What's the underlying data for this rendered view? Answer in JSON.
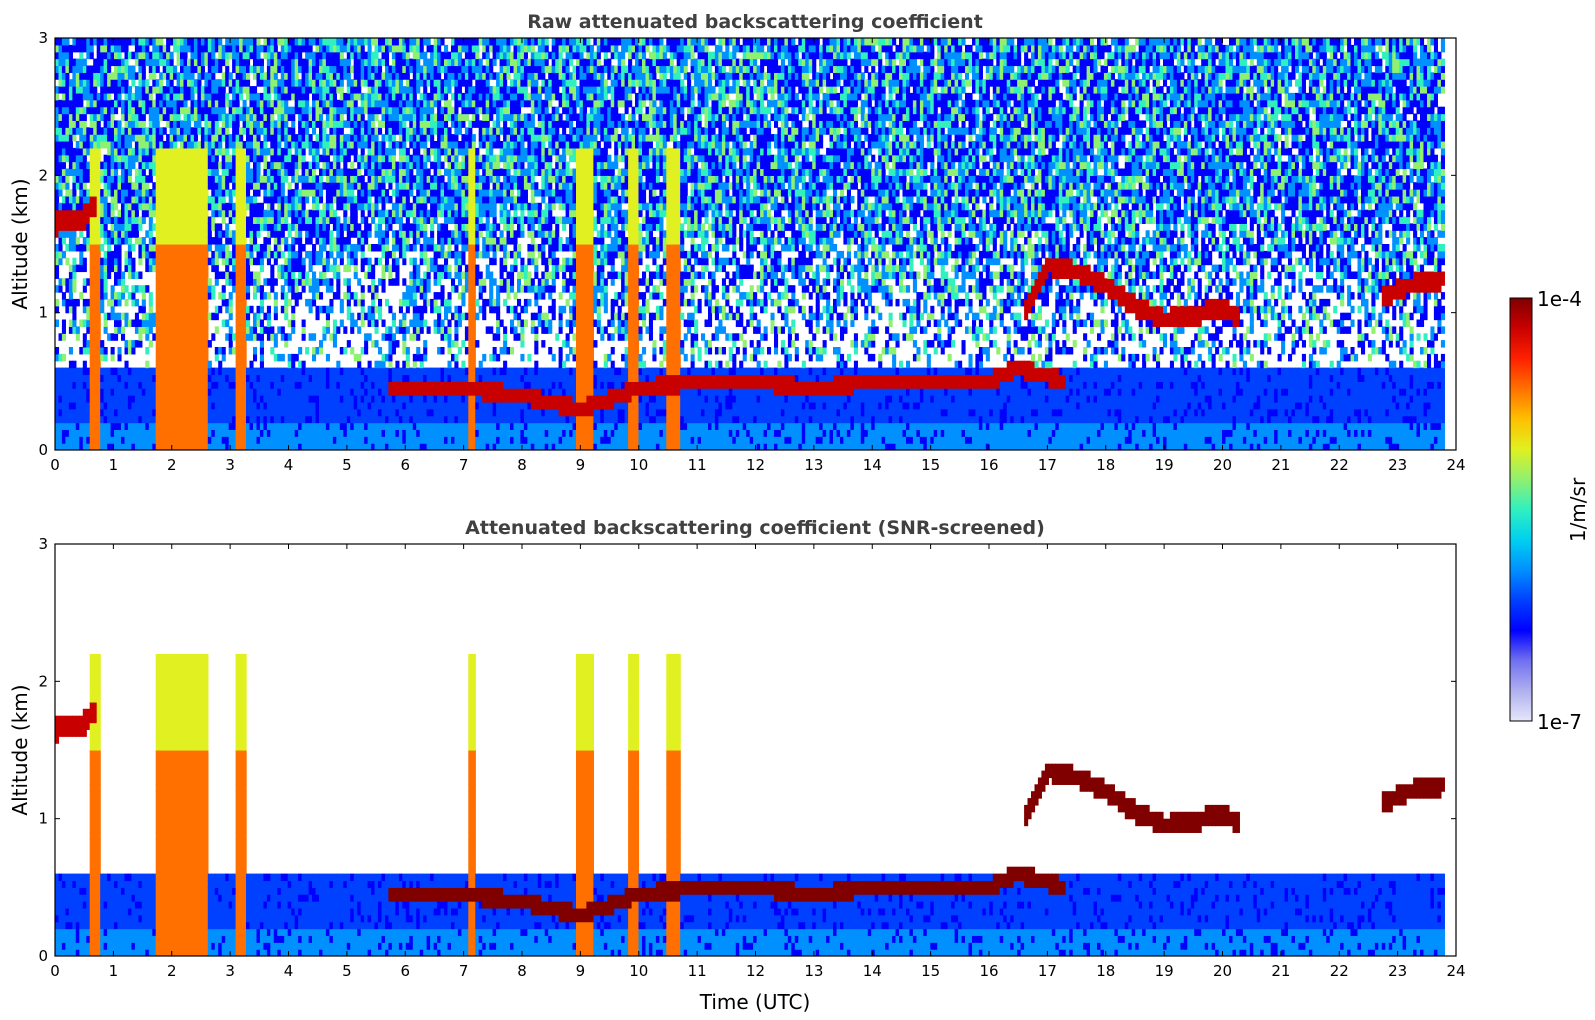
{
  "chart_data": [
    {
      "type": "heatmap",
      "title": "Raw attenuated backscattering coefficient",
      "xlabel": "",
      "ylabel": "Altitude (km)",
      "xlim": [
        0,
        24
      ],
      "ylim": [
        0,
        3
      ],
      "x_ticks": [
        0,
        1,
        2,
        3,
        4,
        5,
        6,
        7,
        8,
        9,
        10,
        11,
        12,
        13,
        14,
        15,
        16,
        17,
        18,
        19,
        20,
        21,
        22,
        23,
        24
      ],
      "y_ticks": [
        0,
        1,
        2,
        3
      ],
      "data_end_time": 23.8,
      "screened": false,
      "features": {
        "boundary_layer_top_km": 0.6,
        "elevated_layer": [
          [
            5.7,
            0.45
          ],
          [
            6.5,
            0.45
          ],
          [
            7.0,
            0.45
          ],
          [
            8.0,
            0.4
          ],
          [
            9.0,
            0.3
          ],
          [
            10.0,
            0.45
          ],
          [
            11.0,
            0.5
          ],
          [
            12.0,
            0.5
          ],
          [
            13.0,
            0.45
          ],
          [
            14.0,
            0.5
          ],
          [
            15.0,
            0.5
          ],
          [
            16.0,
            0.5
          ],
          [
            16.5,
            0.6
          ],
          [
            17.3,
            0.5
          ]
        ],
        "cloud_layer": [
          [
            16.6,
            1.0
          ],
          [
            17.0,
            1.35
          ],
          [
            17.5,
            1.3
          ],
          [
            18.0,
            1.2
          ],
          [
            18.5,
            1.05
          ],
          [
            19.0,
            0.95
          ],
          [
            19.5,
            0.98
          ],
          [
            20.0,
            1.05
          ],
          [
            20.3,
            0.95
          ]
        ],
        "late_cloud_layer": [
          [
            22.7,
            1.1
          ],
          [
            23.2,
            1.2
          ],
          [
            23.8,
            1.25
          ]
        ],
        "morning_layer": [
          [
            0.0,
            1.65
          ],
          [
            0.5,
            1.7
          ],
          [
            0.7,
            1.8
          ]
        ],
        "rain_shafts": [
          [
            0.6,
            0.8
          ],
          [
            1.7,
            2.6
          ],
          [
            3.1,
            3.3
          ],
          [
            7.1,
            7.2
          ],
          [
            8.9,
            9.2
          ],
          [
            9.8,
            10.0
          ],
          [
            10.5,
            10.7
          ]
        ]
      }
    },
    {
      "type": "heatmap",
      "title": "Attenuated backscattering coefficient (SNR-screened)",
      "xlabel": "Time (UTC)",
      "ylabel": "Altitude (km)",
      "xlim": [
        0,
        24
      ],
      "ylim": [
        0,
        3
      ],
      "x_ticks": [
        0,
        1,
        2,
        3,
        4,
        5,
        6,
        7,
        8,
        9,
        10,
        11,
        12,
        13,
        14,
        15,
        16,
        17,
        18,
        19,
        20,
        21,
        22,
        23,
        24
      ],
      "y_ticks": [
        0,
        1,
        2,
        3
      ],
      "data_end_time": 23.8,
      "screened": true
    }
  ],
  "colorbar": {
    "label": "1/m/sr",
    "max_label": "1e-4",
    "min_label": "1e-7",
    "colors": [
      "#e6e6fa",
      "#b0b0f0",
      "#7070f0",
      "#0000ff",
      "#0040ff",
      "#0090ff",
      "#00d0f0",
      "#30f0c0",
      "#90f070",
      "#e0f020",
      "#ffc000",
      "#ff7000",
      "#ff2000",
      "#c80000",
      "#800000"
    ]
  }
}
